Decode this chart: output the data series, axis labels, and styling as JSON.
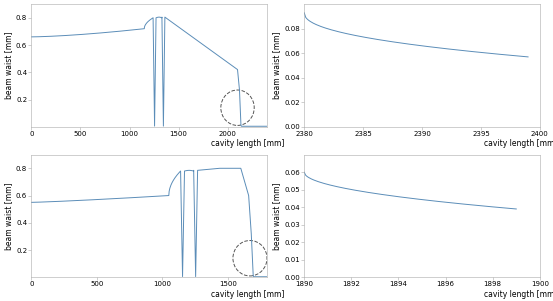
{
  "line_color": "#5b8db8",
  "background_color": "#ffffff",
  "tick_fontsize": 5,
  "label_fontsize": 5.5,
  "top_left": {
    "ylabel": "beam waist [mm]",
    "xlabel": "cavity length [mm]",
    "xlim": [
      0,
      2400
    ],
    "ylim": [
      0,
      0.9
    ],
    "xticks": [
      0,
      500,
      1000,
      1500,
      2000
    ],
    "yticks": [
      0.2,
      0.4,
      0.6,
      0.8
    ]
  },
  "top_right": {
    "ylabel": "beam waist [mm]",
    "xlabel": "cavity length [mm]",
    "xlim": [
      2380,
      2400
    ],
    "ylim": [
      0,
      0.1
    ],
    "xticks": [
      2380,
      2385,
      2390,
      2395,
      2400
    ],
    "yticks": [
      0.0,
      0.02,
      0.04,
      0.06,
      0.08
    ]
  },
  "bottom_left": {
    "ylabel": "beam waist [mm]",
    "xlabel": "cavity length [mm]",
    "xlim": [
      0,
      1800
    ],
    "ylim": [
      0,
      0.9
    ],
    "xticks": [
      0,
      500,
      1000,
      1500
    ],
    "yticks": [
      0.2,
      0.4,
      0.6,
      0.8
    ]
  },
  "bottom_right": {
    "ylabel": "beam waist [mm]",
    "xlabel": "cavity length [mm]",
    "xlim": [
      1890,
      1900
    ],
    "ylim": [
      0,
      0.07
    ],
    "xticks": [
      1890,
      1892,
      1894,
      1896,
      1898,
      1900
    ],
    "yticks": [
      0.0,
      0.01,
      0.02,
      0.03,
      0.04,
      0.05,
      0.06
    ]
  }
}
